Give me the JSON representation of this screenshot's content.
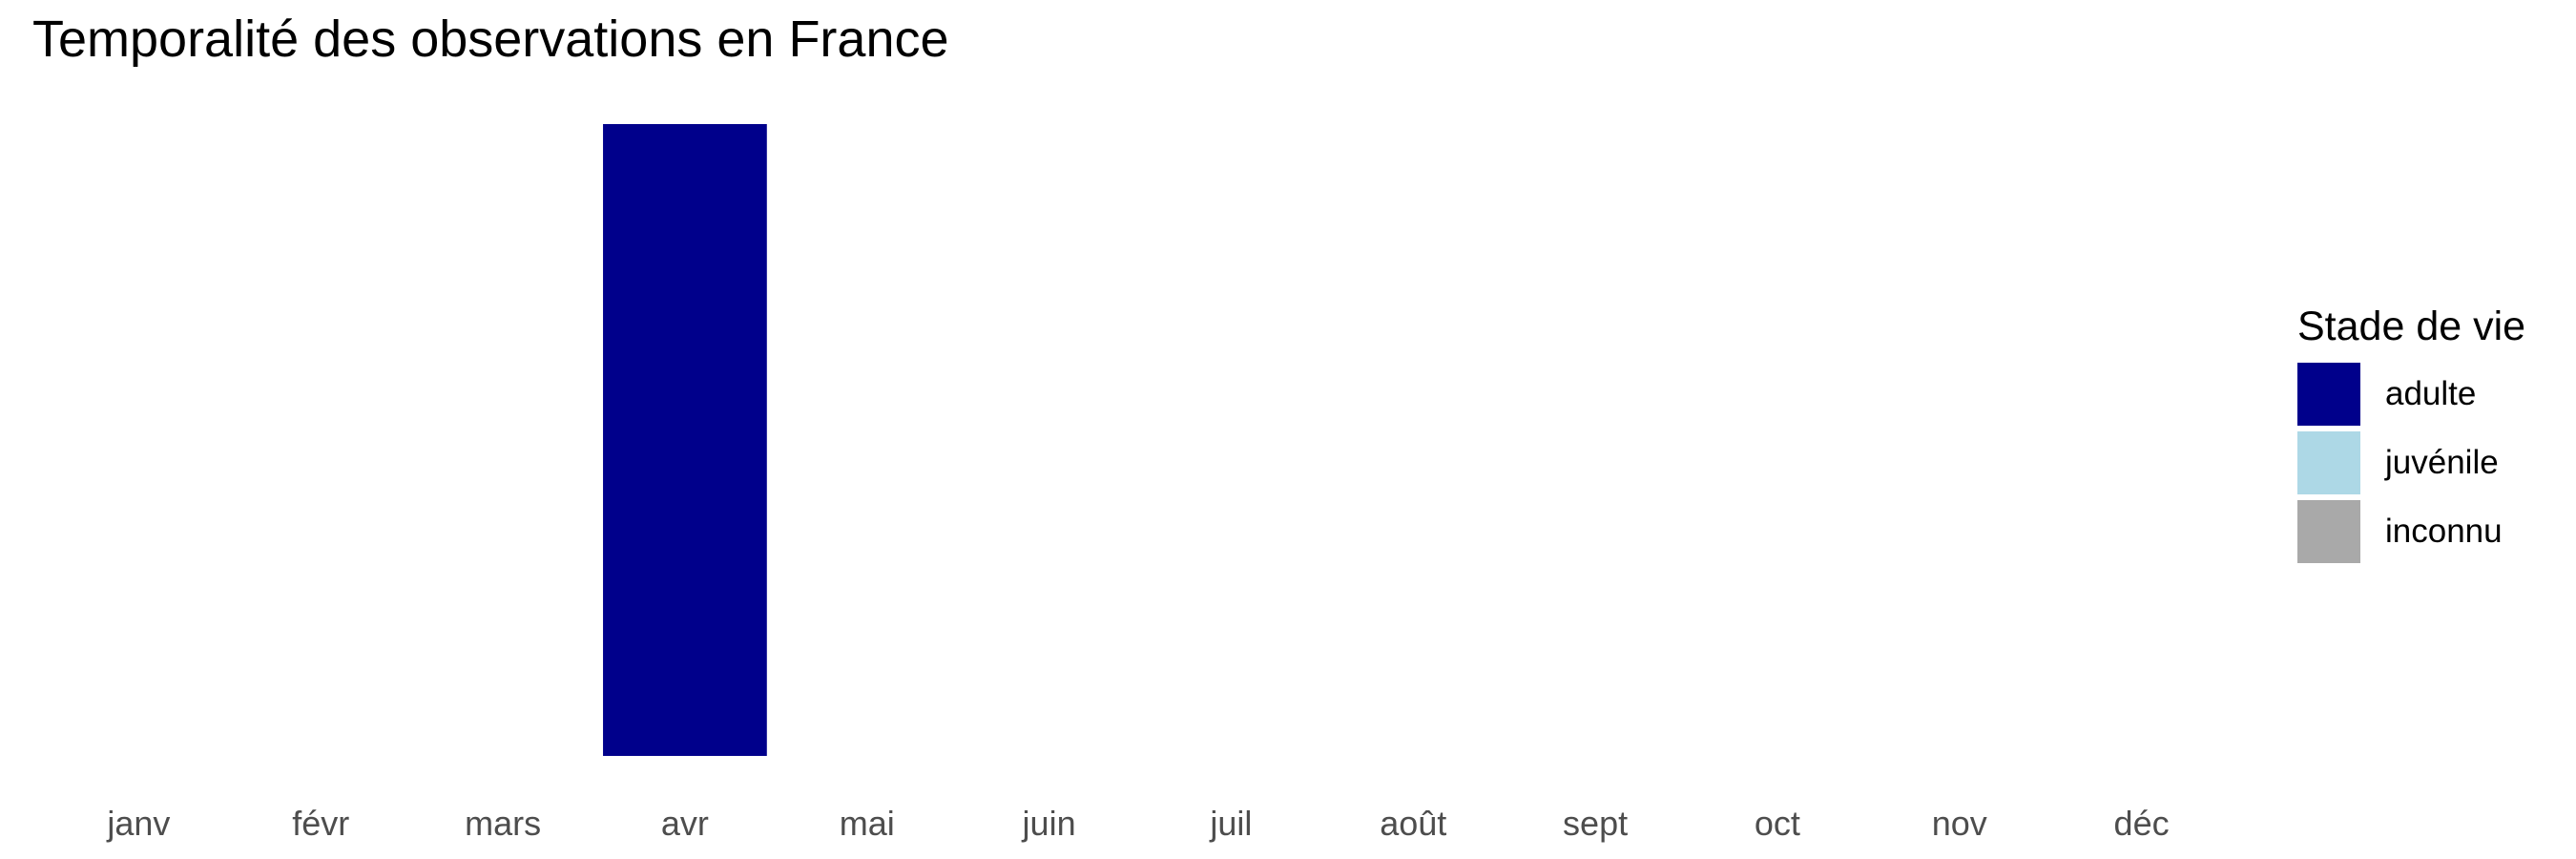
{
  "chart_data": {
    "type": "bar",
    "title": "Temporalité des observations en France",
    "categories": [
      "janv",
      "févr",
      "mars",
      "avr",
      "mai",
      "juin",
      "juil",
      "août",
      "sept",
      "oct",
      "nov",
      "déc"
    ],
    "series": [
      {
        "name": "adulte",
        "color": "#00008B",
        "values": [
          0,
          0,
          0,
          1,
          0,
          0,
          0,
          0,
          0,
          0,
          0,
          0
        ]
      },
      {
        "name": "juvénile",
        "color": "#ADD8E6",
        "values": [
          0,
          0,
          0,
          0,
          0,
          0,
          0,
          0,
          0,
          0,
          0,
          0
        ]
      },
      {
        "name": "inconnu",
        "color": "#A9A9A9",
        "values": [
          0,
          0,
          0,
          0,
          0,
          0,
          0,
          0,
          0,
          0,
          0,
          0
        ]
      }
    ],
    "stacked": true,
    "xlabel": "",
    "ylabel": "",
    "ylim": [
      0,
      1
    ],
    "grid": false,
    "legend": {
      "title": "Stade de vie",
      "position": "right"
    }
  }
}
